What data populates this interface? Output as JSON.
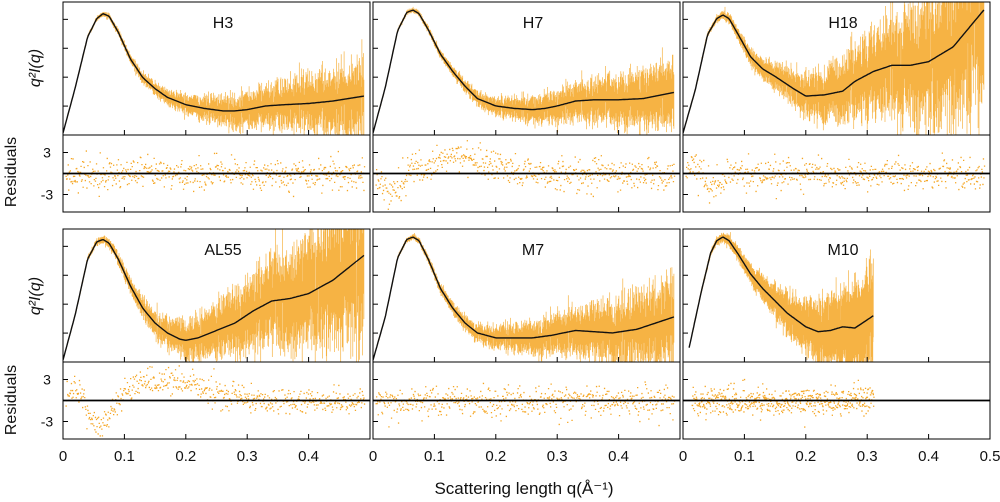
{
  "chart_data": {
    "type": "scatter",
    "x_axis": {
      "label": "Scattering length q(Å⁻¹)",
      "ticks": [
        "0",
        "0.1",
        "0.2",
        "0.3",
        "0.4",
        "0.5"
      ],
      "tick_values": [
        0,
        0.1,
        0.2,
        0.3,
        0.4,
        0.5
      ],
      "range": [
        0,
        0.5
      ]
    },
    "y_label_top": "q²I(q)",
    "y_label_bottom": "Residuals",
    "residual_ticks": [
      "3",
      "-3"
    ],
    "residual_tick_values": [
      3,
      -3
    ],
    "residual_range": [
      -5.5,
      5.5
    ],
    "colors": {
      "data": "#f5a623",
      "fit": "#111111",
      "frame": "#000000"
    },
    "panels": [
      {
        "name": "H3",
        "q_max": 0.49,
        "noise": [
          0.008,
          0.24
        ],
        "resid_spread": 1.1,
        "fit": {
          "x": [
            0,
            0.02,
            0.04,
            0.055,
            0.065,
            0.075,
            0.09,
            0.11,
            0.13,
            0.15,
            0.17,
            0.2,
            0.23,
            0.26,
            0.28,
            0.3,
            0.33,
            0.36,
            0.4,
            0.44,
            0.49
          ],
          "y": [
            0,
            0.37,
            0.78,
            0.93,
            0.97,
            0.95,
            0.82,
            0.6,
            0.45,
            0.36,
            0.29,
            0.23,
            0.2,
            0.18,
            0.18,
            0.19,
            0.22,
            0.23,
            0.24,
            0.26,
            0.3
          ]
        },
        "residuals": {
          "features": []
        }
      },
      {
        "name": "H7",
        "q_max": 0.49,
        "noise": [
          0.008,
          0.22
        ],
        "resid_spread": 1.1,
        "fit": {
          "x": [
            0,
            0.02,
            0.04,
            0.055,
            0.065,
            0.075,
            0.09,
            0.11,
            0.13,
            0.15,
            0.17,
            0.2,
            0.23,
            0.26,
            0.28,
            0.3,
            0.33,
            0.36,
            0.4,
            0.44,
            0.49
          ],
          "y": [
            0,
            0.37,
            0.83,
            0.98,
            1.0,
            0.97,
            0.84,
            0.64,
            0.5,
            0.38,
            0.28,
            0.22,
            0.2,
            0.19,
            0.2,
            0.22,
            0.26,
            0.27,
            0.27,
            0.28,
            0.33
          ]
        },
        "residuals": {
          "features": [
            [
              0.03,
              0.02,
              -2.2
            ],
            [
              0.06,
              0.012,
              1.2
            ],
            [
              0.14,
              0.035,
              2.8
            ]
          ]
        }
      },
      {
        "name": "H18",
        "q_max": 0.49,
        "noise": [
          0.008,
          0.55
        ],
        "resid_spread": 1.0,
        "fit": {
          "x": [
            0,
            0.02,
            0.04,
            0.055,
            0.065,
            0.075,
            0.09,
            0.11,
            0.13,
            0.15,
            0.18,
            0.2,
            0.23,
            0.26,
            0.28,
            0.31,
            0.34,
            0.37,
            0.4,
            0.44,
            0.49
          ],
          "y": [
            0,
            0.35,
            0.8,
            0.93,
            0.96,
            0.93,
            0.8,
            0.62,
            0.52,
            0.46,
            0.36,
            0.3,
            0.31,
            0.34,
            0.42,
            0.5,
            0.55,
            0.55,
            0.58,
            0.7,
            1.0
          ]
        },
        "residuals": {
          "features": [
            [
              0.02,
              0.012,
              1.6
            ],
            [
              0.045,
              0.015,
              -1.6
            ]
          ]
        }
      },
      {
        "name": "AL55",
        "q_max": 0.49,
        "noise": [
          0.008,
          0.5
        ],
        "resid_spread": 1.0,
        "fit": {
          "x": [
            0,
            0.02,
            0.04,
            0.055,
            0.065,
            0.075,
            0.09,
            0.11,
            0.13,
            0.15,
            0.17,
            0.19,
            0.2,
            0.22,
            0.25,
            0.28,
            0.31,
            0.34,
            0.37,
            0.4,
            0.44,
            0.49
          ],
          "y": [
            0,
            0.37,
            0.82,
            0.96,
            0.98,
            0.95,
            0.82,
            0.6,
            0.42,
            0.3,
            0.22,
            0.17,
            0.16,
            0.18,
            0.24,
            0.3,
            0.4,
            0.48,
            0.5,
            0.54,
            0.65,
            0.85
          ]
        },
        "residuals": {
          "features": [
            [
              0.02,
              0.013,
              2.0
            ],
            [
              0.06,
              0.02,
              -3.8
            ],
            [
              0.17,
              0.06,
              2.8
            ]
          ]
        }
      },
      {
        "name": "M7",
        "q_max": 0.49,
        "noise": [
          0.008,
          0.28
        ],
        "resid_spread": 1.1,
        "fit": {
          "x": [
            0,
            0.02,
            0.04,
            0.055,
            0.065,
            0.075,
            0.09,
            0.11,
            0.13,
            0.15,
            0.17,
            0.2,
            0.23,
            0.26,
            0.29,
            0.33,
            0.36,
            0.39,
            0.43,
            0.46,
            0.49
          ],
          "y": [
            0,
            0.35,
            0.83,
            0.98,
            1.0,
            0.97,
            0.82,
            0.58,
            0.42,
            0.3,
            0.22,
            0.18,
            0.18,
            0.18,
            0.2,
            0.24,
            0.23,
            0.22,
            0.25,
            0.3,
            0.35
          ]
        },
        "residuals": {
          "features": []
        }
      },
      {
        "name": "M10",
        "q_max": 0.31,
        "noise": [
          0.01,
          0.32
        ],
        "resid_spread": 1.0,
        "fit": {
          "x": [
            0.01,
            0.03,
            0.045,
            0.055,
            0.065,
            0.075,
            0.09,
            0.11,
            0.13,
            0.15,
            0.17,
            0.2,
            0.22,
            0.24,
            0.26,
            0.28,
            0.31
          ],
          "y": [
            0.1,
            0.56,
            0.87,
            0.97,
            1.0,
            0.97,
            0.86,
            0.7,
            0.58,
            0.48,
            0.38,
            0.27,
            0.23,
            0.24,
            0.27,
            0.26,
            0.36
          ]
        },
        "residuals": {
          "features": []
        }
      }
    ]
  }
}
